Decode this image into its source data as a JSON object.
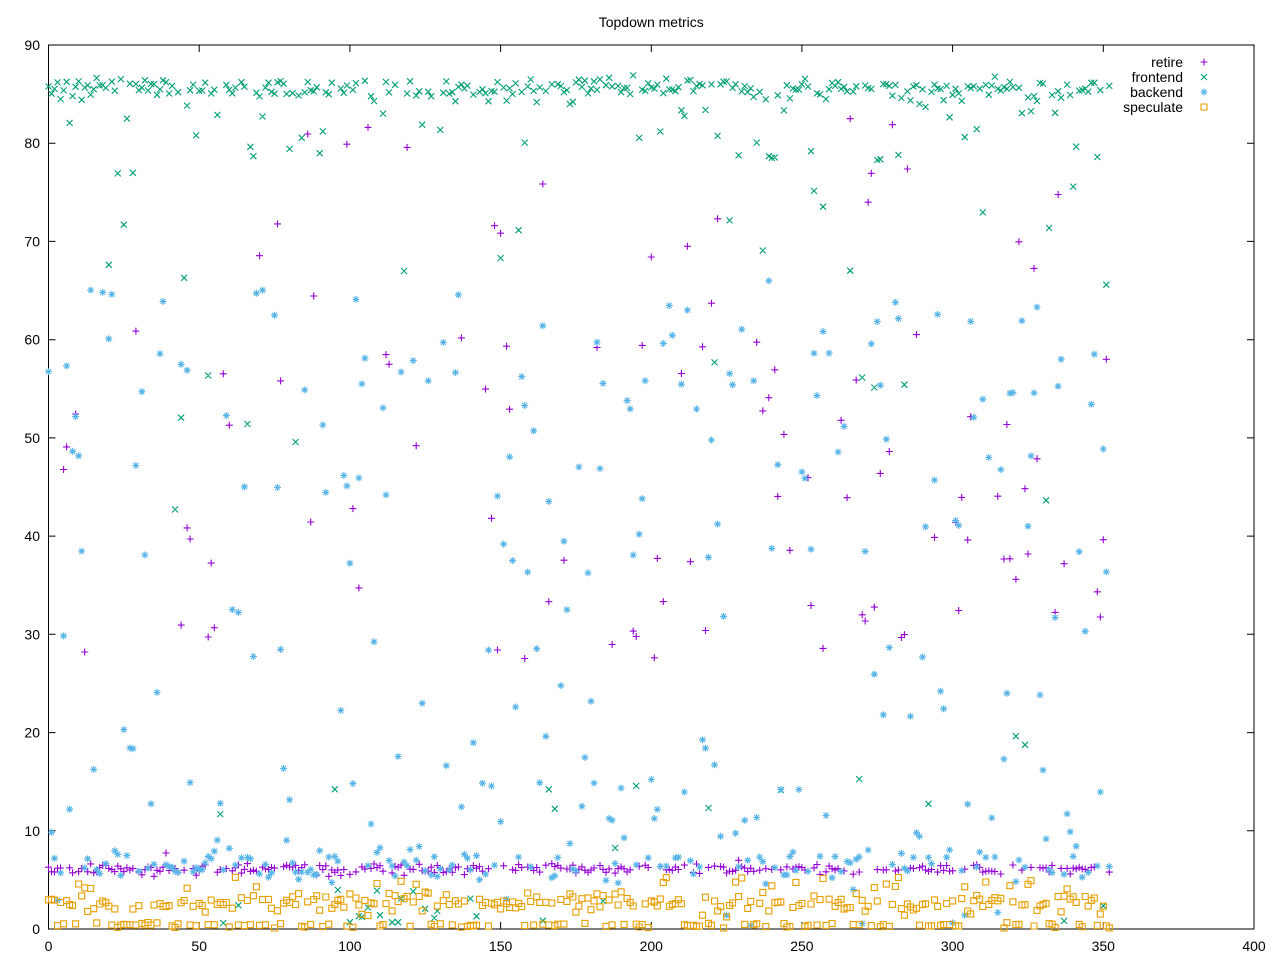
{
  "colors": {
    "background": "#ffffff",
    "axis": "#000000",
    "text": "#000000",
    "retire": "#9400D3",
    "frontend": "#009E73",
    "backend": "#56B4E9",
    "speculate": "#E69F00"
  },
  "legend": {
    "position": "top-right-inside",
    "entries": [
      {
        "label": "retire",
        "marker": "plus",
        "color": "#9400D3"
      },
      {
        "label": "frontend",
        "marker": "cross",
        "color": "#009E73"
      },
      {
        "label": "backend",
        "marker": "asterisk",
        "color": "#56B4E9"
      },
      {
        "label": "speculate",
        "marker": "square",
        "color": "#E69F00"
      }
    ]
  },
  "chart_data": {
    "type": "scatter",
    "title": "Topdown metrics",
    "xlabel": "",
    "ylabel": "",
    "x_min": 0,
    "x_max": 400,
    "y_min": 0,
    "y_max": 90,
    "x_ticks": [
      0,
      50,
      100,
      150,
      200,
      250,
      300,
      350,
      400
    ],
    "y_ticks": [
      0,
      10,
      20,
      30,
      40,
      50,
      60,
      70,
      80,
      90
    ],
    "grid": false,
    "legend_position": "top-right-inside",
    "sample_seed": 1337,
    "x_start": 0,
    "x_end": 352,
    "x_step": 1,
    "series": [
      {
        "name": "retire",
        "color": "#9400D3",
        "marker": "plus",
        "n_points": 353,
        "y_distribution": {
          "components": [
            {
              "type": "normal",
              "weight": 0.705,
              "mu": 6.1,
              "sigma": 0.28
            },
            {
              "type": "uniform",
              "weight": 0.025,
              "min": 7,
              "max": 20
            },
            {
              "type": "uniform",
              "weight": 0.22,
              "min": 27,
              "max": 62
            },
            {
              "type": "uniform",
              "weight": 0.035,
              "min": 62,
              "max": 77
            },
            {
              "type": "uniform",
              "weight": 0.015,
              "min": 77,
              "max": 83.5
            }
          ]
        }
      },
      {
        "name": "frontend",
        "color": "#009E73",
        "marker": "cross",
        "n_points": 353,
        "y_distribution": {
          "components": [
            {
              "type": "normal",
              "weight": 0.68,
              "mu": 85.6,
              "sigma": 0.55,
              "clip_max": 88.8
            },
            {
              "type": "uniform",
              "weight": 0.115,
              "min": 78,
              "max": 84.5
            },
            {
              "type": "uniform",
              "weight": 0.045,
              "min": 66,
              "max": 78
            },
            {
              "type": "uniform",
              "weight": 0.045,
              "min": 40,
              "max": 66
            },
            {
              "type": "uniform",
              "weight": 0.03,
              "min": 8,
              "max": 20
            },
            {
              "type": "uniform",
              "weight": 0.035,
              "min": 0.2,
              "max": 3.5
            },
            {
              "type": "uniform",
              "weight": 0.25,
              "min": 0.3,
              "max": 4,
              "x_min": 95,
              "x_max": 145
            }
          ]
        }
      },
      {
        "name": "backend",
        "color": "#56B4E9",
        "marker": "asterisk",
        "n_points": 353,
        "y_distribution": {
          "components": [
            {
              "type": "normal",
              "weight": 0.47,
              "mu": 6.6,
              "sigma": 1.1,
              "clip_min": 4.0
            },
            {
              "type": "uniform",
              "weight": 0.09,
              "min": 9,
              "max": 15
            },
            {
              "type": "uniform",
              "weight": 0.12,
              "min": 15,
              "max": 33
            },
            {
              "type": "uniform",
              "weight": 0.18,
              "min": 36,
              "max": 55
            },
            {
              "type": "uniform",
              "weight": 0.12,
              "min": 55,
              "max": 66
            },
            {
              "type": "normal",
              "weight": 0.02,
              "mu": 1.5,
              "sigma": 0.8,
              "clip_min": 0.2
            }
          ]
        }
      },
      {
        "name": "speculate",
        "color": "#E69F00",
        "marker": "square",
        "n_points": 353,
        "y_distribution": {
          "components": [
            {
              "type": "normal",
              "weight": 0.54,
              "mu": 2.65,
              "sigma": 0.4,
              "clip_min": 1.6
            },
            {
              "type": "normal",
              "weight": 0.34,
              "mu": 0.38,
              "sigma": 0.12,
              "clip_min": 0.08
            },
            {
              "type": "uniform",
              "weight": 0.09,
              "min": 3.3,
              "max": 5.3
            },
            {
              "type": "uniform",
              "weight": 0.03,
              "min": 1.2,
              "max": 2.0
            }
          ]
        }
      }
    ]
  }
}
